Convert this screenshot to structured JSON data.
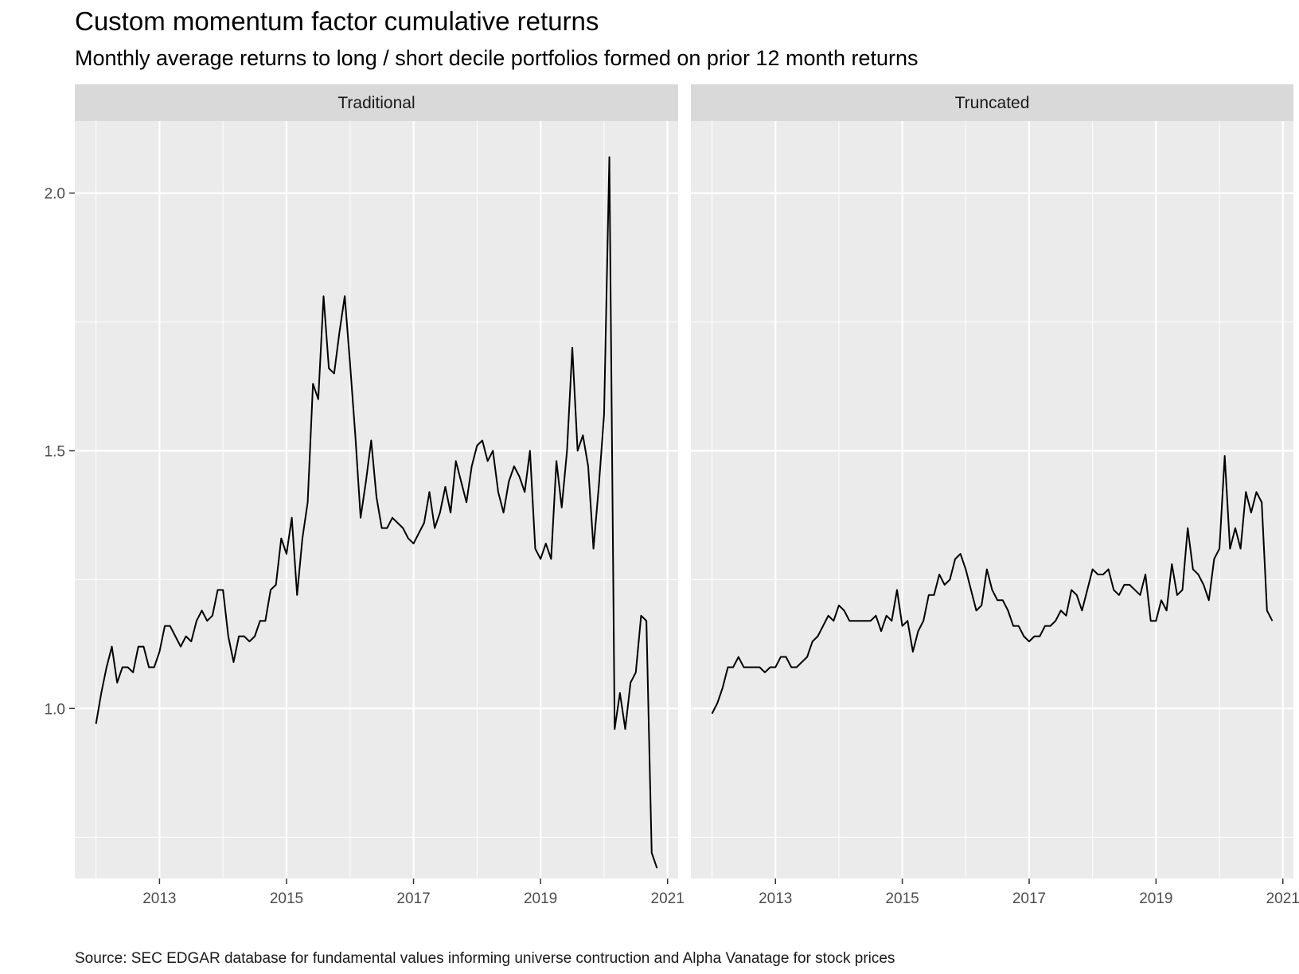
{
  "title": "Custom momentum factor cumulative returns",
  "subtitle": "Monthly average returns to long / short decile portfolios formed on prior 12 month returns",
  "caption": "Source: SEC EDGAR database for fundamental values informing universe contruction and Alpha Vanatage for stock prices",
  "colors": {
    "panel_bg": "#EBEBEB",
    "strip_bg": "#D9D9D9",
    "grid": "#FFFFFF",
    "line": "#000000",
    "tick_text": "#4D4D4D"
  },
  "chart_data": {
    "type": "line",
    "facet_by": "method",
    "ylim": [
      0.67,
      2.14
    ],
    "xlim": [
      "2011-09",
      "2021-03"
    ],
    "y_ticks": [
      1.0,
      1.5,
      2.0
    ],
    "y_tick_labels": [
      "1.0",
      "1.5",
      "2.0"
    ],
    "x_ticks": [
      "2013-01",
      "2015-01",
      "2017-01",
      "2019-01",
      "2021-01"
    ],
    "x_tick_labels": [
      "2013",
      "2015",
      "2017",
      "2019",
      "2021"
    ],
    "grid": true,
    "legend": "none",
    "x_units": "months",
    "x_start": "2012-01",
    "panels": [
      {
        "name": "Traditional",
        "values": [
          0.97,
          1.03,
          1.08,
          1.12,
          1.05,
          1.08,
          1.08,
          1.07,
          1.12,
          1.12,
          1.08,
          1.08,
          1.11,
          1.16,
          1.16,
          1.14,
          1.12,
          1.14,
          1.13,
          1.17,
          1.19,
          1.17,
          1.18,
          1.23,
          1.23,
          1.14,
          1.09,
          1.14,
          1.14,
          1.13,
          1.14,
          1.17,
          1.17,
          1.23,
          1.24,
          1.33,
          1.3,
          1.37,
          1.22,
          1.33,
          1.4,
          1.63,
          1.6,
          1.8,
          1.66,
          1.65,
          1.73,
          1.8,
          1.67,
          1.53,
          1.37,
          1.44,
          1.52,
          1.41,
          1.35,
          1.35,
          1.37,
          1.36,
          1.35,
          1.33,
          1.32,
          1.34,
          1.36,
          1.42,
          1.35,
          1.38,
          1.43,
          1.38,
          1.48,
          1.44,
          1.4,
          1.47,
          1.51,
          1.52,
          1.48,
          1.5,
          1.42,
          1.38,
          1.44,
          1.47,
          1.45,
          1.42,
          1.5,
          1.31,
          1.29,
          1.32,
          1.29,
          1.48,
          1.39,
          1.5,
          1.7,
          1.5,
          1.53,
          1.47,
          1.31,
          1.43,
          1.57,
          2.07,
          0.96,
          1.03,
          0.96,
          1.05,
          1.07,
          1.18,
          1.17,
          0.72,
          0.69
        ],
        "labels": [
          "2012-01",
          "2012-02",
          "2012-03",
          "2012-04",
          "2012-05",
          "2012-06",
          "2012-07",
          "2012-08",
          "2012-09",
          "2012-10",
          "2012-11",
          "2012-12",
          "2013-01",
          "2013-02",
          "2013-03",
          "2013-04",
          "2013-05",
          "2013-06",
          "2013-07",
          "2013-08",
          "2013-09",
          "2013-10",
          "2013-11",
          "2013-12",
          "2014-01",
          "2014-02",
          "2014-03",
          "2014-04",
          "2014-05",
          "2014-06",
          "2014-07",
          "2014-08",
          "2014-09",
          "2014-10",
          "2014-11",
          "2014-12",
          "2015-01",
          "2015-02",
          "2015-03",
          "2015-04",
          "2015-05",
          "2015-06",
          "2015-07",
          "2015-08",
          "2015-09",
          "2015-10",
          "2015-11",
          "2015-12",
          "2016-01",
          "2016-02",
          "2016-03",
          "2016-04",
          "2016-05",
          "2016-06",
          "2016-07",
          "2016-08",
          "2016-09",
          "2016-10",
          "2016-11",
          "2016-12",
          "2017-01",
          "2017-02",
          "2017-03",
          "2017-04",
          "2017-05",
          "2017-06",
          "2017-07",
          "2017-08",
          "2017-09",
          "2017-10",
          "2017-11",
          "2017-12",
          "2018-01",
          "2018-02",
          "2018-03",
          "2018-04",
          "2018-05",
          "2018-06",
          "2018-07",
          "2018-08",
          "2018-09",
          "2018-10",
          "2018-11",
          "2018-12",
          "2019-01",
          "2019-02",
          "2019-03",
          "2019-04",
          "2019-05",
          "2019-06",
          "2019-07",
          "2019-08",
          "2019-09",
          "2019-10",
          "2019-11",
          "2019-12",
          "2020-01",
          "2020-02",
          "2020-03",
          "2020-04",
          "2020-05",
          "2020-06",
          "2020-07",
          "2020-08",
          "2020-09",
          "2020-10",
          "2020-11"
        ]
      },
      {
        "name": "Truncated",
        "values": [
          0.99,
          1.01,
          1.04,
          1.08,
          1.08,
          1.1,
          1.08,
          1.08,
          1.08,
          1.08,
          1.07,
          1.08,
          1.08,
          1.1,
          1.1,
          1.08,
          1.08,
          1.09,
          1.1,
          1.13,
          1.14,
          1.16,
          1.18,
          1.17,
          1.2,
          1.19,
          1.17,
          1.17,
          1.17,
          1.17,
          1.17,
          1.18,
          1.15,
          1.18,
          1.17,
          1.23,
          1.16,
          1.17,
          1.11,
          1.15,
          1.17,
          1.22,
          1.22,
          1.26,
          1.24,
          1.25,
          1.29,
          1.3,
          1.27,
          1.23,
          1.19,
          1.2,
          1.27,
          1.23,
          1.21,
          1.21,
          1.19,
          1.16,
          1.16,
          1.14,
          1.13,
          1.14,
          1.14,
          1.16,
          1.16,
          1.17,
          1.19,
          1.18,
          1.23,
          1.22,
          1.19,
          1.23,
          1.27,
          1.26,
          1.26,
          1.27,
          1.23,
          1.22,
          1.24,
          1.24,
          1.23,
          1.22,
          1.26,
          1.17,
          1.17,
          1.21,
          1.19,
          1.28,
          1.22,
          1.23,
          1.35,
          1.27,
          1.26,
          1.24,
          1.21,
          1.29,
          1.31,
          1.49,
          1.31,
          1.35,
          1.31,
          1.42,
          1.38,
          1.42,
          1.4,
          1.19,
          1.17
        ],
        "labels": [
          "2012-01",
          "2012-02",
          "2012-03",
          "2012-04",
          "2012-05",
          "2012-06",
          "2012-07",
          "2012-08",
          "2012-09",
          "2012-10",
          "2012-11",
          "2012-12",
          "2013-01",
          "2013-02",
          "2013-03",
          "2013-04",
          "2013-05",
          "2013-06",
          "2013-07",
          "2013-08",
          "2013-09",
          "2013-10",
          "2013-11",
          "2013-12",
          "2014-01",
          "2014-02",
          "2014-03",
          "2014-04",
          "2014-05",
          "2014-06",
          "2014-07",
          "2014-08",
          "2014-09",
          "2014-10",
          "2014-11",
          "2014-12",
          "2015-01",
          "2015-02",
          "2015-03",
          "2015-04",
          "2015-05",
          "2015-06",
          "2015-07",
          "2015-08",
          "2015-09",
          "2015-10",
          "2015-11",
          "2015-12",
          "2016-01",
          "2016-02",
          "2016-03",
          "2016-04",
          "2016-05",
          "2016-06",
          "2016-07",
          "2016-08",
          "2016-09",
          "2016-10",
          "2016-11",
          "2016-12",
          "2017-01",
          "2017-02",
          "2017-03",
          "2017-04",
          "2017-05",
          "2017-06",
          "2017-07",
          "2017-08",
          "2017-09",
          "2017-10",
          "2017-11",
          "2017-12",
          "2018-01",
          "2018-02",
          "2018-03",
          "2018-04",
          "2018-05",
          "2018-06",
          "2018-07",
          "2018-08",
          "2018-09",
          "2018-10",
          "2018-11",
          "2018-12",
          "2019-01",
          "2019-02",
          "2019-03",
          "2019-04",
          "2019-05",
          "2019-06",
          "2019-07",
          "2019-08",
          "2019-09",
          "2019-10",
          "2019-11",
          "2019-12",
          "2020-01",
          "2020-02",
          "2020-03",
          "2020-04",
          "2020-05",
          "2020-06",
          "2020-07",
          "2020-08",
          "2020-09",
          "2020-10",
          "2020-11"
        ]
      }
    ]
  }
}
